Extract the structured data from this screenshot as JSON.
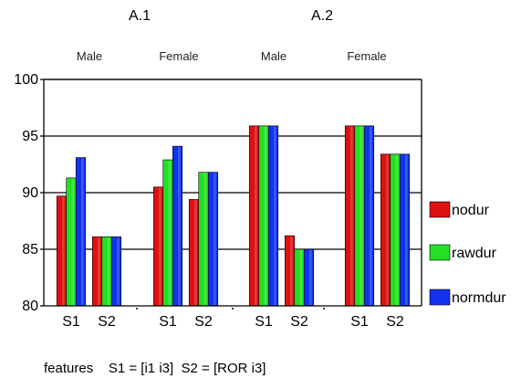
{
  "colors": {
    "nodur": "#dd1111",
    "rawdur": "#22e022",
    "normdur": "#1133ee"
  },
  "chart_data": {
    "type": "bar",
    "ylim": [
      80,
      100
    ],
    "yticks": [
      80,
      85,
      90,
      95,
      100
    ],
    "grid": "horizontal",
    "legend_position": "right",
    "super_groups": [
      "A.1",
      "A.2"
    ],
    "groups": [
      "Male",
      "Female",
      "Male",
      "Female"
    ],
    "categories": [
      "S1",
      "S2",
      "S1",
      "S2",
      "S1",
      "S2",
      "S1",
      "S2"
    ],
    "series": [
      {
        "name": "nodur",
        "values": [
          89.7,
          86.1,
          90.5,
          89.4,
          95.9,
          86.2,
          95.9,
          93.4
        ]
      },
      {
        "name": "rawdur",
        "values": [
          91.3,
          86.1,
          92.9,
          91.8,
          95.9,
          85.0,
          95.9,
          93.4
        ]
      },
      {
        "name": "normdur",
        "values": [
          93.1,
          86.1,
          94.1,
          91.8,
          95.9,
          85.0,
          95.9,
          93.4
        ]
      }
    ],
    "footnote": "features    S1 = [i1 i3]  S2 = [ROR i3]"
  }
}
